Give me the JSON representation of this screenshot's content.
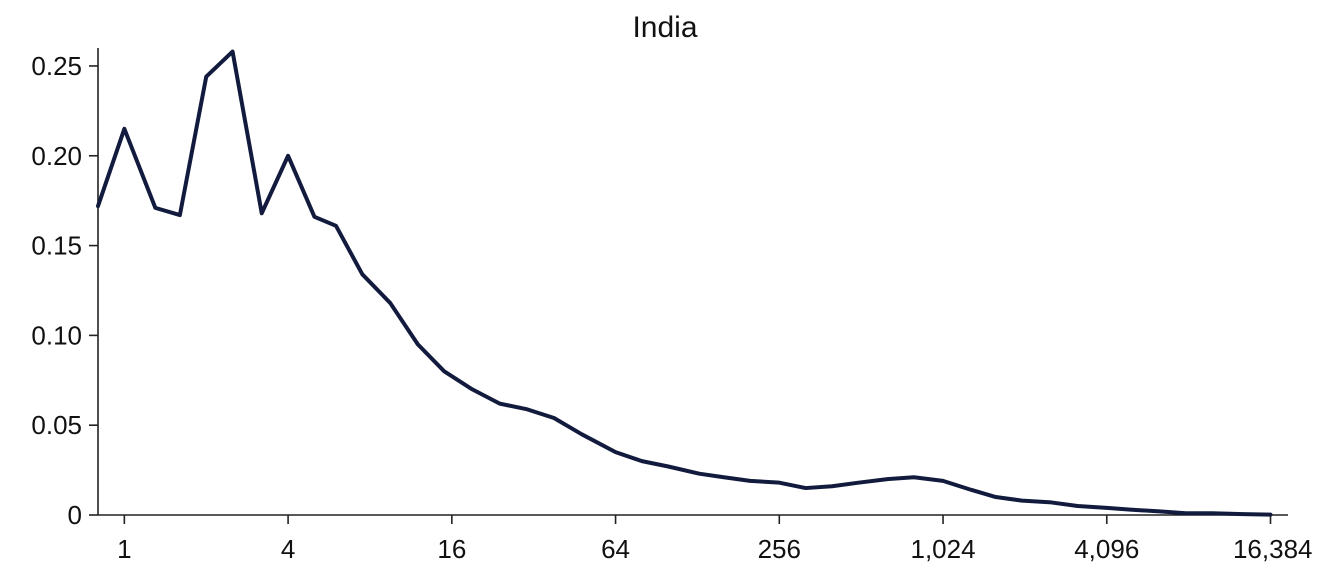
{
  "chart_data": {
    "type": "line",
    "title": "India",
    "xlabel": "",
    "ylabel": "",
    "x_scale": "log2",
    "xlim": [
      0.8,
      19000
    ],
    "ylim": [
      0,
      0.26
    ],
    "grid": false,
    "colors": {
      "line": "#121b3d",
      "axis": "#222222"
    },
    "x_ticks": [
      {
        "value": 1,
        "label": "1"
      },
      {
        "value": 4,
        "label": "4"
      },
      {
        "value": 16,
        "label": "16"
      },
      {
        "value": 64,
        "label": "64"
      },
      {
        "value": 256,
        "label": "256"
      },
      {
        "value": 1024,
        "label": "1,024"
      },
      {
        "value": 4096,
        "label": "4,096"
      },
      {
        "value": 16384,
        "label": "16,384"
      }
    ],
    "y_ticks": [
      {
        "value": 0,
        "label": "0"
      },
      {
        "value": 0.05,
        "label": "0.05"
      },
      {
        "value": 0.1,
        "label": "0.10"
      },
      {
        "value": 0.15,
        "label": "0.15"
      },
      {
        "value": 0.2,
        "label": "0.20"
      },
      {
        "value": 0.25,
        "label": "0.25"
      }
    ],
    "series": [
      {
        "x": [
          0.8,
          1,
          1.3,
          1.6,
          2,
          2.5,
          3.2,
          4,
          5,
          6,
          7.5,
          9.5,
          12,
          15,
          19,
          24,
          30,
          38,
          48,
          64,
          80,
          100,
          130,
          160,
          200,
          256,
          320,
          400,
          500,
          640,
          800,
          1024,
          1300,
          1600,
          2000,
          2560,
          3200,
          4096,
          5000,
          6400,
          8000,
          10000,
          13000,
          16384
        ],
        "y": [
          0.172,
          0.215,
          0.171,
          0.167,
          0.244,
          0.258,
          0.168,
          0.2,
          0.166,
          0.161,
          0.134,
          0.118,
          0.095,
          0.08,
          0.07,
          0.062,
          0.059,
          0.054,
          0.045,
          0.035,
          0.03,
          0.027,
          0.023,
          0.021,
          0.019,
          0.018,
          0.015,
          0.016,
          0.018,
          0.02,
          0.021,
          0.019,
          0.014,
          0.01,
          0.008,
          0.007,
          0.005,
          0.004,
          0.003,
          0.002,
          0.001,
          0.001,
          0.0005,
          0.0002
        ]
      }
    ]
  }
}
